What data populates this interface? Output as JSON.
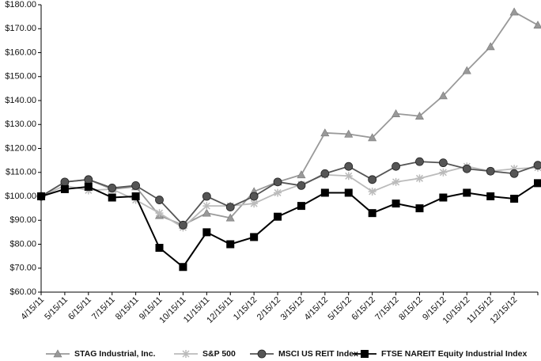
{
  "chart_data": {
    "type": "line",
    "categories": [
      "4/15/11",
      "5/15/11",
      "6/15/11",
      "7/15/11",
      "8/15/11",
      "9/15/11",
      "10/15/11",
      "11/15/11",
      "12/15/11",
      "1/15/12",
      "2/15/12",
      "3/15/12",
      "4/15/12",
      "5/15/12",
      "6/15/12",
      "7/15/12",
      "8/15/12",
      "9/15/12",
      "10/15/12",
      "11/15/12",
      "12/15/12",
      null
    ],
    "ylim": [
      60,
      180
    ],
    "yticks": [
      {
        "value": 60,
        "label": "$60.00"
      },
      {
        "value": 70,
        "label": "$70.00"
      },
      {
        "value": 80,
        "label": "$80.00"
      },
      {
        "value": 90,
        "label": "$90.00"
      },
      {
        "value": 100,
        "label": "$100.00"
      },
      {
        "value": 110,
        "label": "$110.00"
      },
      {
        "value": 120,
        "label": "$120.00"
      },
      {
        "value": 130,
        "label": "$130.00"
      },
      {
        "value": 140,
        "label": "$140.00"
      },
      {
        "value": 150,
        "label": "$150.00"
      },
      {
        "value": 160,
        "label": "$160.00"
      },
      {
        "value": 170,
        "label": "$170.00"
      },
      {
        "value": 180,
        "label": "$180.00"
      }
    ],
    "grid": false,
    "series": [
      {
        "name": "STAG Industrial, Inc.",
        "color": "#999999",
        "marker": "triangle",
        "values": [
          100,
          106,
          107,
          103,
          104,
          92,
          88,
          93,
          91,
          102,
          106,
          109,
          126.5,
          126,
          124.5,
          134.5,
          133.5,
          142,
          152.5,
          162.5,
          177,
          171.5
        ]
      },
      {
        "name": "S&P 500",
        "color": "#bbbbbb",
        "marker": "asterisk",
        "values": [
          100,
          104.5,
          102.5,
          103,
          98.5,
          93,
          87,
          96,
          96,
          97,
          101.5,
          105,
          109,
          108.5,
          102,
          106,
          107.5,
          110,
          112.5,
          110.5,
          111.5,
          112
        ]
      },
      {
        "name": "MSCI US REIT Index",
        "color": "#555555",
        "marker": "circle",
        "values": [
          100,
          106,
          107,
          103.5,
          104.5,
          98.5,
          88,
          100,
          95.5,
          100,
          106,
          104.5,
          109.5,
          112.5,
          107,
          112.5,
          114.5,
          114,
          111.5,
          110.5,
          109.5,
          113
        ]
      },
      {
        "name": "FTSE NAREIT Equity Industrial Index",
        "color": "#000000",
        "marker": "square",
        "values": [
          100,
          103,
          104,
          99.5,
          100,
          78.5,
          70.5,
          85,
          80,
          83,
          91.5,
          96,
          101.5,
          101.5,
          93,
          97,
          95,
          99.5,
          101.5,
          100,
          99,
          105.5
        ]
      }
    ]
  }
}
